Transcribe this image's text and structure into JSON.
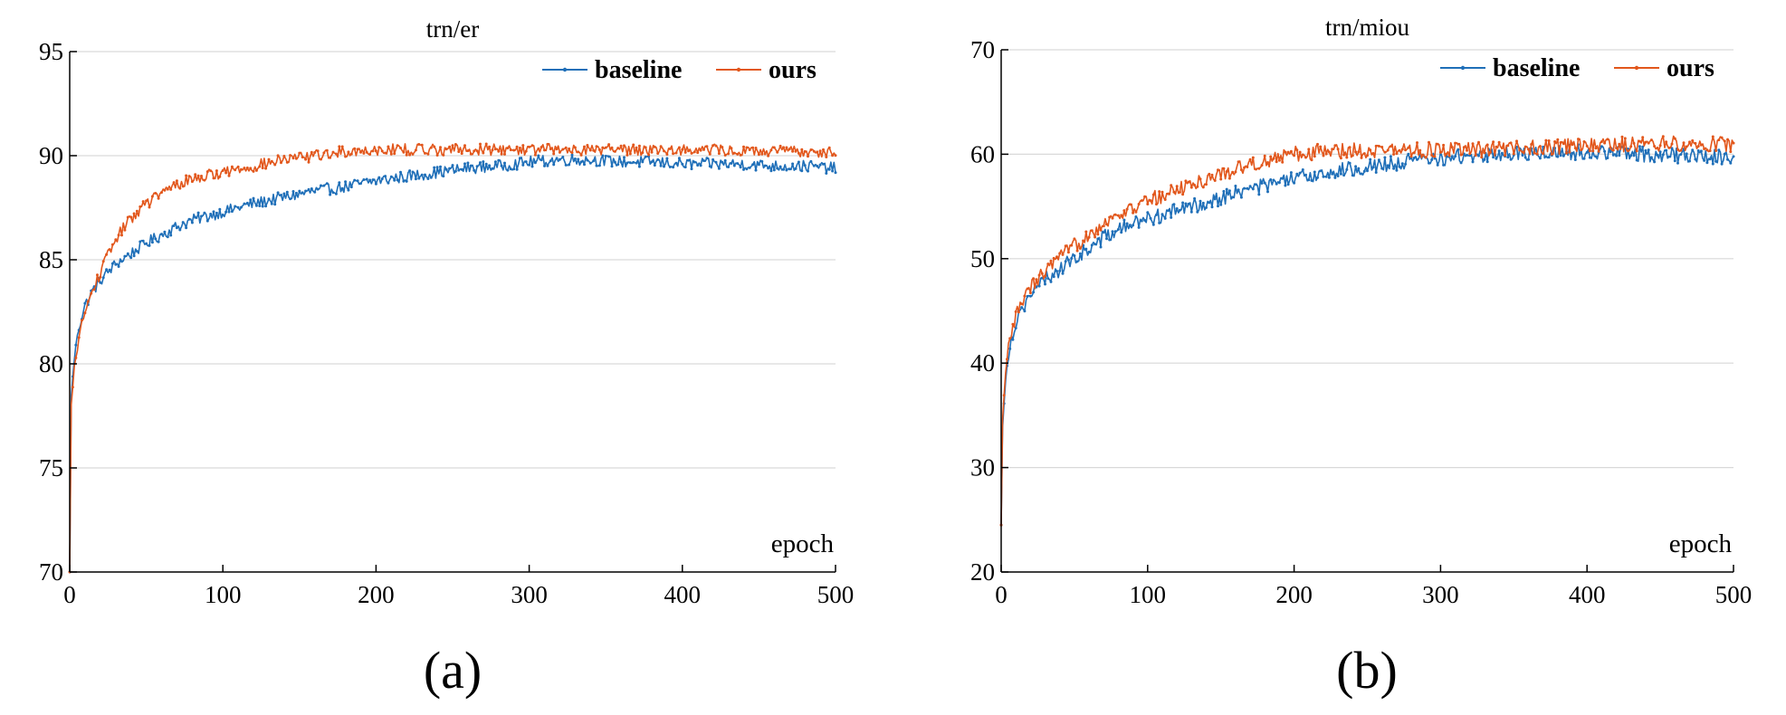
{
  "panels": [
    {
      "caption": "(a)",
      "chart_data": {
        "type": "line",
        "title": "trn/er",
        "xlabel": "epoch",
        "ylabel": "",
        "xlim": [
          0,
          500
        ],
        "ylim": [
          70,
          95
        ],
        "xticks": [
          0,
          100,
          200,
          300,
          400,
          500
        ],
        "yticks": [
          70,
          75,
          80,
          85,
          90,
          95
        ],
        "grid": "horizontal",
        "legend_position": "top-right",
        "x": [
          0,
          1,
          3,
          5,
          10,
          15,
          20,
          30,
          40,
          50,
          60,
          70,
          80,
          100,
          120,
          140,
          160,
          180,
          200,
          220,
          240,
          260,
          280,
          300,
          320,
          340,
          360,
          380,
          400,
          420,
          440,
          460,
          480,
          500
        ],
        "series": [
          {
            "name": "baseline",
            "color": "#1f6fb8",
            "values": [
              70.0,
              78.5,
              80.2,
              81.5,
              82.8,
              83.5,
              84.0,
              84.8,
              85.3,
              85.8,
              86.2,
              86.6,
              86.9,
              87.3,
              87.7,
              88.0,
              88.3,
              88.5,
              88.8,
              89.0,
              89.2,
              89.4,
              89.5,
              89.7,
              89.8,
              89.8,
              89.7,
              89.7,
              89.6,
              89.6,
              89.6,
              89.5,
              89.5,
              89.4
            ]
          },
          {
            "name": "ours",
            "color": "#e2571c",
            "values": [
              70.0,
              78.0,
              79.8,
              80.9,
              82.5,
              83.5,
              84.4,
              86.0,
              87.0,
              87.7,
              88.2,
              88.6,
              88.9,
              89.2,
              89.5,
              89.8,
              90.0,
              90.2,
              90.3,
              90.3,
              90.3,
              90.3,
              90.3,
              90.3,
              90.3,
              90.3,
              90.3,
              90.3,
              90.3,
              90.3,
              90.2,
              90.2,
              90.2,
              90.2
            ]
          }
        ]
      }
    },
    {
      "caption": "(b)",
      "chart_data": {
        "type": "line",
        "title": "trn/miou",
        "xlabel": "epoch",
        "ylabel": "",
        "xlim": [
          0,
          500
        ],
        "ylim": [
          20,
          70
        ],
        "xticks": [
          0,
          100,
          200,
          300,
          400,
          500
        ],
        "yticks": [
          20,
          30,
          40,
          50,
          60,
          70
        ],
        "grid": "horizontal",
        "legend_position": "top-right",
        "x": [
          0,
          1,
          3,
          5,
          10,
          15,
          20,
          30,
          40,
          50,
          60,
          70,
          80,
          100,
          120,
          140,
          160,
          180,
          200,
          220,
          240,
          260,
          280,
          300,
          320,
          340,
          360,
          380,
          400,
          420,
          440,
          460,
          480,
          500
        ],
        "series": [
          {
            "name": "baseline",
            "color": "#1f6fb8",
            "values": [
              24.5,
              34.0,
              38.5,
              41.0,
              44.0,
              45.5,
              46.5,
              48.0,
              49.0,
              50.0,
              51.0,
              52.0,
              52.8,
              53.8,
              54.6,
              55.4,
              56.3,
              57.0,
              57.6,
              58.2,
              58.6,
              59.0,
              59.3,
              59.6,
              59.8,
              60.0,
              60.1,
              60.2,
              60.2,
              60.1,
              60.0,
              59.9,
              59.8,
              59.7
            ]
          },
          {
            "name": "ours",
            "color": "#e2571c",
            "values": [
              24.5,
              34.5,
              39.0,
              41.5,
              44.5,
              46.0,
              47.2,
              48.8,
              50.0,
              51.2,
              52.4,
              53.4,
              54.2,
              55.5,
              56.6,
              57.6,
              58.6,
              59.4,
              60.0,
              60.3,
              60.4,
              60.4,
              60.4,
              60.4,
              60.4,
              60.5,
              60.6,
              60.7,
              60.8,
              60.9,
              61.0,
              61.0,
              61.0,
              60.9
            ]
          }
        ]
      }
    }
  ]
}
